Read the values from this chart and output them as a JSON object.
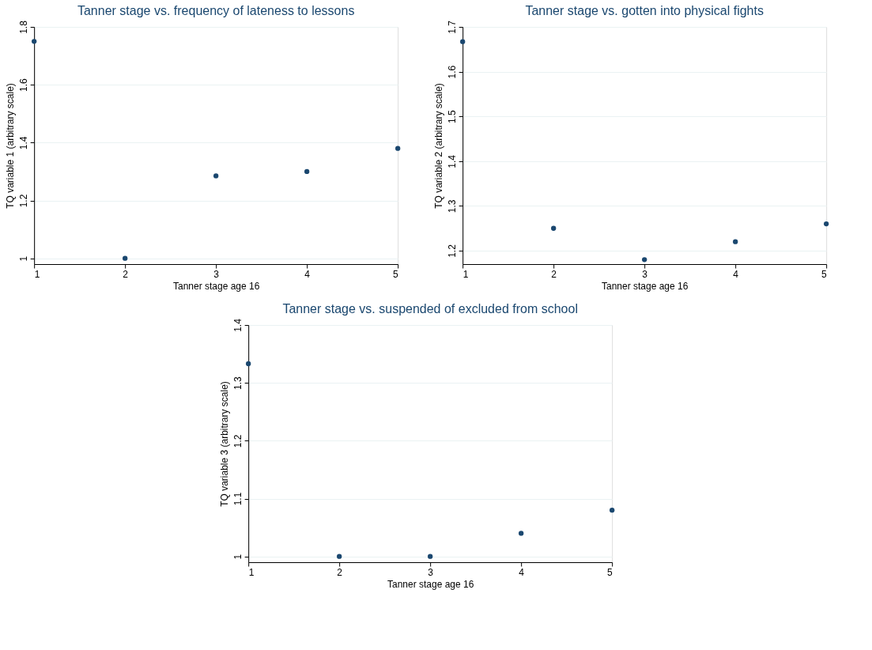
{
  "chart_data": [
    {
      "type": "scatter",
      "title": "Tanner stage vs. frequency of lateness to lessons",
      "xlabel": "Tanner stage age 16",
      "ylabel": "TQ variable 1 (arbitrary scale)",
      "x": [
        1,
        2,
        3,
        4,
        5
      ],
      "xlim": [
        1,
        5
      ],
      "xticks": [
        1,
        2,
        3,
        4,
        5
      ],
      "ylim": [
        0.98,
        1.8
      ],
      "yticks": [
        1,
        1.2,
        1.4,
        1.6,
        1.8
      ],
      "grid": "y",
      "marker": "circle",
      "series": [
        {
          "color": "#1a476f",
          "values": [
            1.75,
            1.0,
            1.285,
            1.3,
            1.38
          ]
        }
      ]
    },
    {
      "type": "scatter",
      "title": "Tanner stage vs. gotten into physical fights",
      "xlabel": "Tanner stage age 16",
      "ylabel": "TQ variable 2 (arbitrary scale)",
      "x": [
        1,
        2,
        3,
        4,
        5
      ],
      "xlim": [
        1,
        5
      ],
      "xticks": [
        1,
        2,
        3,
        4,
        5
      ],
      "ylim": [
        1.17,
        1.7
      ],
      "yticks": [
        1.2,
        1.3,
        1.4,
        1.5,
        1.6,
        1.7
      ],
      "grid": "y",
      "marker": "circle",
      "series": [
        {
          "color": "#1a476f",
          "values": [
            1.667,
            1.25,
            1.18,
            1.22,
            1.26
          ]
        }
      ]
    },
    {
      "type": "scatter",
      "title": "Tanner stage vs. suspended of excluded from school",
      "xlabel": "Tanner stage age 16",
      "ylabel": "TQ variable 3 (arbitrary scale)",
      "x": [
        1,
        2,
        3,
        4,
        5
      ],
      "xlim": [
        1,
        5
      ],
      "xticks": [
        1,
        2,
        3,
        4,
        5
      ],
      "ylim": [
        0.99,
        1.4
      ],
      "yticks": [
        1,
        1.1,
        1.2,
        1.3,
        1.4
      ],
      "grid": "y",
      "marker": "circle",
      "series": [
        {
          "color": "#1a476f",
          "values": [
            1.333,
            1.0,
            1.0,
            1.04,
            1.08
          ]
        }
      ]
    }
  ]
}
